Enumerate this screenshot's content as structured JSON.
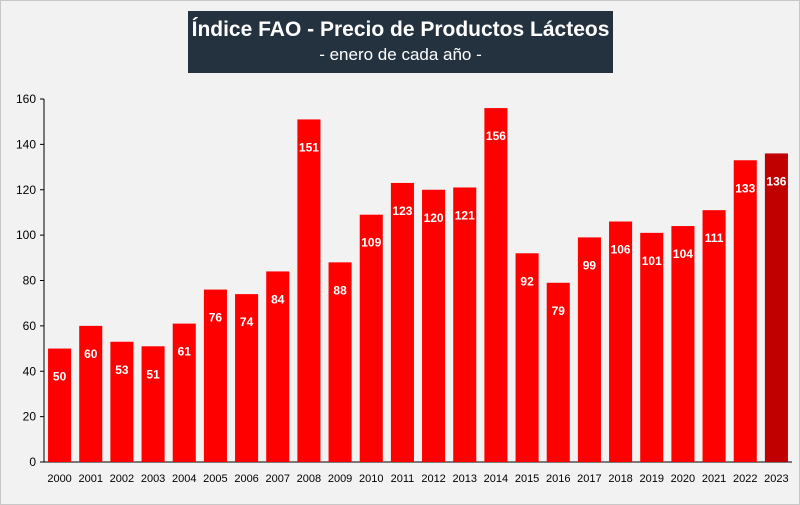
{
  "chart_data": {
    "type": "bar",
    "title": "Índice FAO - Precio de Productos Lácteos",
    "subtitle": "- enero de cada año -",
    "xlabel": "",
    "ylabel": "",
    "categories": [
      "2000",
      "2001",
      "2002",
      "2003",
      "2004",
      "2005",
      "2006",
      "2007",
      "2008",
      "2009",
      "2010",
      "2011",
      "2012",
      "2013",
      "2014",
      "2015",
      "2016",
      "2017",
      "2018",
      "2019",
      "2020",
      "2021",
      "2022",
      "2023"
    ],
    "values": [
      50,
      60,
      53,
      51,
      61,
      76,
      74,
      84,
      151,
      88,
      109,
      123,
      120,
      121,
      156,
      92,
      79,
      99,
      106,
      101,
      104,
      111,
      133,
      136
    ],
    "data_labels": [
      "50",
      "60",
      "53",
      "51",
      "61",
      "76",
      "74",
      "84",
      "151",
      "88",
      "109",
      "123",
      "120",
      "121",
      "156",
      "92",
      "79",
      "99",
      "106",
      "101",
      "104",
      "111",
      "133",
      "136"
    ],
    "ylim": [
      0,
      160
    ],
    "yticks": [
      "0",
      "20",
      "40",
      "60",
      "80",
      "100",
      "120",
      "140",
      "160"
    ],
    "grid": false,
    "legend": "none",
    "bar_color": "#ff0000",
    "highlight_color": "#c00000",
    "highlight_category": "2023",
    "label_color": "#ffffff",
    "title_background": "#243240"
  }
}
